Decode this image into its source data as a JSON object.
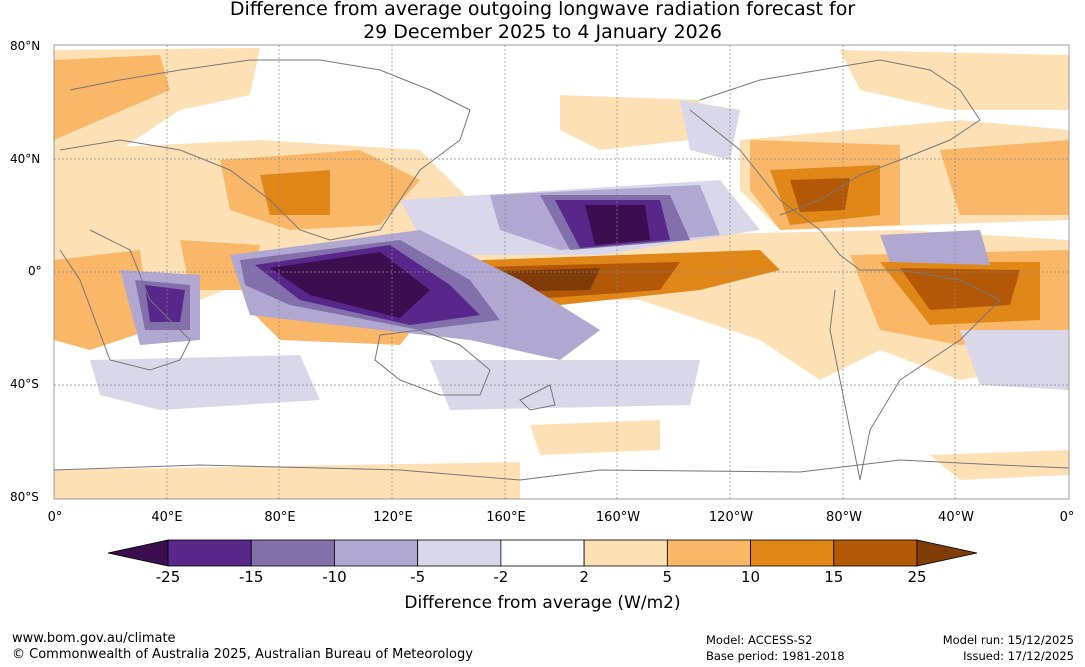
{
  "title": {
    "line1": "Difference from average outgoing longwave radiation forecast for",
    "line2": "29 December 2025 to 4 January 2026"
  },
  "axes": {
    "lat_labels": [
      "80°N",
      "40°N",
      "0°",
      "40°S",
      "80°S"
    ],
    "lon_labels": [
      "0°",
      "40°E",
      "80°E",
      "120°E",
      "160°E",
      "160°W",
      "120°W",
      "80°W",
      "40°W",
      "0°"
    ]
  },
  "legend": {
    "ticks": [
      "-25",
      "-15",
      "-10",
      "-5",
      "-2",
      "2",
      "5",
      "10",
      "15",
      "25"
    ],
    "colors": [
      "#3b0f4f",
      "#57278a",
      "#8170aa",
      "#b0a8d0",
      "#d9d7ea",
      "#ffffff",
      "#fde0b4",
      "#f9b767",
      "#e08717",
      "#b35806",
      "#7f3b08"
    ],
    "units_label": "Difference from average (W/m2)"
  },
  "footer": {
    "url": "www.bom.gov.au/climate",
    "copyright": "© Commonwealth of Australia 2025, Australian Bureau of Meteorology",
    "model": "Model: ACCESS-S2",
    "base_period": "Base period: 1981-2018",
    "model_run": "Model run: 15/12/2025",
    "issued": "Issued: 17/12/2025"
  }
}
